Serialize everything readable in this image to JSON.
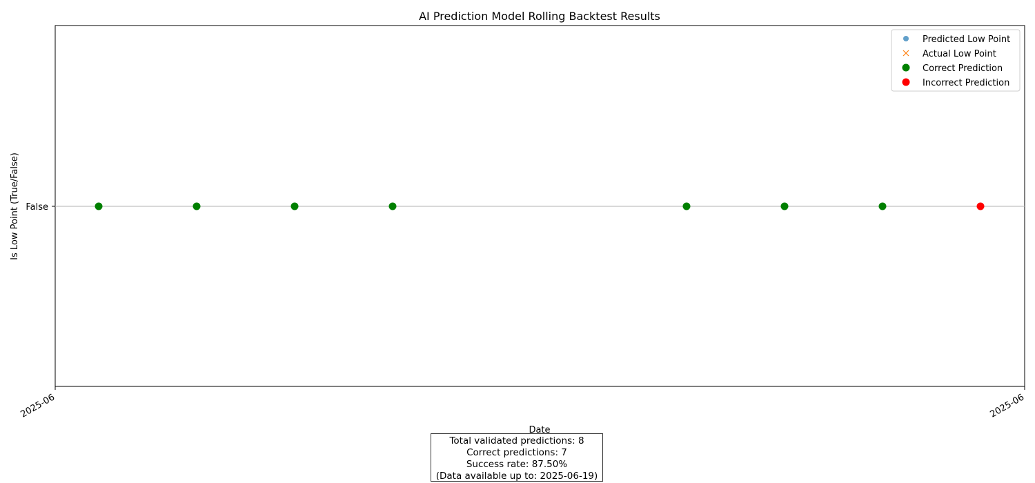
{
  "chart_data": {
    "type": "scatter",
    "title": "AI Prediction Model Rolling Backtest Results",
    "xlabel": "Date",
    "ylabel": "Is Low Point (True/False)",
    "x_tick_labels": [
      "2025-06",
      "2025-06"
    ],
    "y_tick_labels": [
      "False"
    ],
    "ylim": [
      -0.05,
      0.05
    ],
    "grid": "horizontal line at False",
    "legend_position": "top-right",
    "legend": [
      {
        "label": "Predicted Low Point",
        "marker": "circle-small",
        "color": "#1f77b4"
      },
      {
        "label": "Actual Low Point",
        "marker": "x",
        "color": "#ff7f0e"
      },
      {
        "label": "Correct Prediction",
        "marker": "circle",
        "color": "#008000"
      },
      {
        "label": "Incorrect Prediction",
        "marker": "circle",
        "color": "#ff0000"
      }
    ],
    "points": [
      {
        "index": 0,
        "value": "False",
        "result": "correct"
      },
      {
        "index": 1,
        "value": "False",
        "result": "correct"
      },
      {
        "index": 2,
        "value": "False",
        "result": "correct"
      },
      {
        "index": 3,
        "value": "False",
        "result": "correct"
      },
      {
        "index": 6,
        "value": "False",
        "result": "correct"
      },
      {
        "index": 7,
        "value": "False",
        "result": "correct"
      },
      {
        "index": 8,
        "value": "False",
        "result": "correct"
      },
      {
        "index": 9,
        "value": "False",
        "result": "incorrect"
      }
    ],
    "colors": {
      "correct": "#008000",
      "incorrect": "#ff0000"
    }
  },
  "summary": {
    "total": "Total validated predictions: 8",
    "correct": "Correct predictions: 7",
    "rate": "Success rate: 87.50%",
    "available": "(Data available up to: 2025-06-19)"
  }
}
